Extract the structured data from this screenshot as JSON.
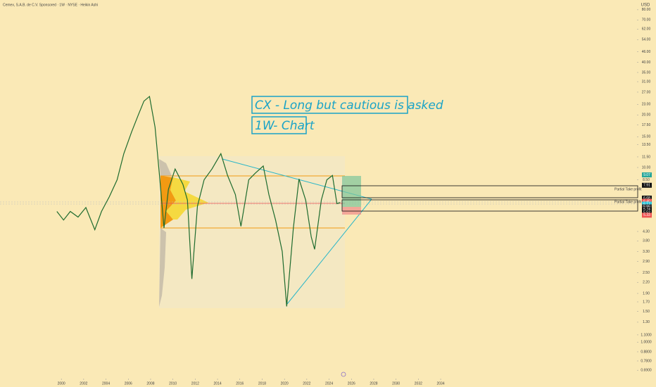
{
  "chart_data": {
    "type": "line",
    "title": "Cemex, S.A.B. de C.V. Sponsored · 1W · NYSE · Heikin Ashi",
    "currency": "USD",
    "annotations": [
      "CX - Long but cautious is asked",
      "1W- Chart"
    ],
    "target_labels": [
      "Partial Take profit",
      "Partial Take profit"
    ],
    "color": "#1e6b2e",
    "log_scale": true,
    "x": [
      1999.6,
      2000.2,
      2000.8,
      2001.5,
      2002.2,
      2003.0,
      2003.6,
      2004.3,
      2005.0,
      2005.6,
      2006.3,
      2006.9,
      2007.4,
      2007.9,
      2008.4,
      2008.8,
      2009.2,
      2009.6,
      2010.2,
      2010.9,
      2011.3,
      2011.7,
      2012.2,
      2012.8,
      2013.5,
      2014.3,
      2014.9,
      2015.6,
      2016.1,
      2016.8,
      2017.4,
      2018.1,
      2018.6,
      2019.2,
      2019.8,
      2020.2,
      2020.8,
      2021.3,
      2021.9,
      2022.4,
      2022.7,
      2023.3,
      2023.8,
      2024.3,
      2024.7,
      2025.0
    ],
    "values": [
      5.6,
      5.0,
      5.6,
      5.2,
      5.9,
      4.4,
      5.6,
      6.8,
      8.5,
      12.0,
      16.0,
      20.0,
      24.0,
      25.5,
      17.0,
      9.0,
      4.5,
      7.5,
      9.8,
      8.0,
      6.5,
      2.3,
      6.0,
      8.5,
      9.8,
      12.0,
      9.0,
      7.0,
      4.6,
      8.5,
      9.3,
      10.2,
      7.0,
      5.0,
      3.3,
      1.6,
      4.5,
      8.6,
      6.5,
      4.0,
      3.4,
      6.5,
      8.5,
      9.0,
      6.2,
      6.3
    ],
    "xlim": [
      1994.5,
      2051.6
    ],
    "xticks": [
      2000,
      2002,
      2004,
      2006,
      2008,
      2010,
      2012,
      2014,
      2016,
      2018,
      2020,
      2022,
      2024,
      2026,
      2028,
      2030,
      2032,
      2034
    ],
    "ylim": [
      0.63,
      91
    ],
    "yticks": [
      {
        "value": 80,
        "label": "80.00"
      },
      {
        "value": 70,
        "label": "70.00"
      },
      {
        "value": 62,
        "label": "62.00"
      },
      {
        "value": 54,
        "label": "54.00"
      },
      {
        "value": 46,
        "label": "46.00"
      },
      {
        "value": 40,
        "label": "40.00"
      },
      {
        "value": 35,
        "label": "35.00"
      },
      {
        "value": 31,
        "label": "31.00"
      },
      {
        "value": 27,
        "label": "27.00"
      },
      {
        "value": 23,
        "label": "23.00"
      },
      {
        "value": 20,
        "label": "20.00"
      },
      {
        "value": 17.5,
        "label": "17.50"
      },
      {
        "value": 15,
        "label": "15.00"
      },
      {
        "value": 13.5,
        "label": "13.50"
      },
      {
        "value": 11.5,
        "label": "11.50"
      },
      {
        "value": 10,
        "label": "10.00"
      },
      {
        "value": 8.5,
        "label": "8.50"
      },
      {
        "value": 4.3,
        "label": "4.30"
      },
      {
        "value": 3.8,
        "label": "3.80"
      },
      {
        "value": 3.3,
        "label": "3.30"
      },
      {
        "value": 2.9,
        "label": "2.90"
      },
      {
        "value": 2.5,
        "label": "2.50"
      },
      {
        "value": 2.2,
        "label": "2.20"
      },
      {
        "value": 1.9,
        "label": "1.90"
      },
      {
        "value": 1.7,
        "label": "1.70"
      },
      {
        "value": 1.5,
        "label": "1.50"
      },
      {
        "value": 1.3,
        "label": "1.30"
      },
      {
        "value": 1.1,
        "label": "1.1000"
      },
      {
        "value": 1,
        "label": "1.0000"
      },
      {
        "value": 0.88,
        "label": "0.8800"
      },
      {
        "value": 0.78,
        "label": "0.7800"
      },
      {
        "value": 0.69,
        "label": "0.6900"
      }
    ],
    "price_tags": [
      9.07,
      7.91,
      6.68,
      {
        "value": 6.4,
        "label": "6.40"
      },
      6.17,
      5.95,
      5.74,
      5.52,
      5.33
    ],
    "price_tag_colors": [
      "#26a69a",
      "#111111",
      "#111111",
      "#ef5350",
      "#26c6da",
      "#333333",
      "#111111",
      "#111111",
      "#ef5350"
    ],
    "grid": false
  }
}
